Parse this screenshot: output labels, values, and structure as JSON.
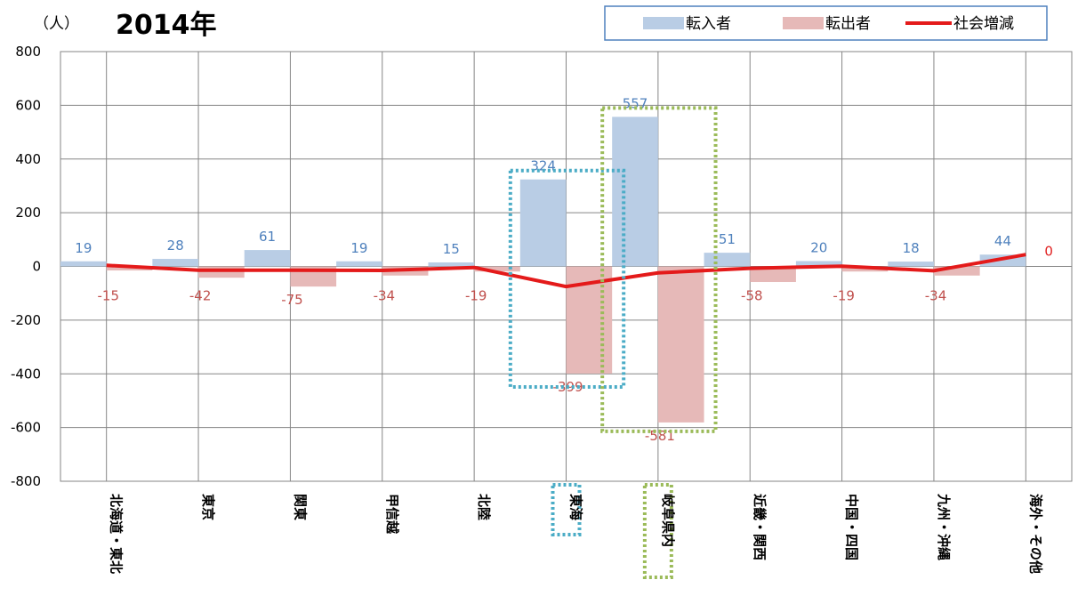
{
  "chart_data": {
    "type": "bar",
    "title": "2014年",
    "unit_label": "（人）",
    "ylim": [
      -800,
      800
    ],
    "yticks": [
      800,
      600,
      400,
      200,
      0,
      -200,
      -400,
      -600,
      -800
    ],
    "grid": true,
    "legend_position": "top-right",
    "categories": [
      "北海道・東北",
      "東京",
      "関東",
      "甲信越",
      "北陸",
      "東海",
      "岐阜県内",
      "近畿・関西",
      "中国・四国",
      "九州・沖縄",
      "海外・その他"
    ],
    "series": [
      {
        "name": "転入者",
        "kind": "bar",
        "color": "#b9cde5",
        "label_color": "#4f81bd",
        "values": [
          19,
          28,
          61,
          19,
          15,
          324,
          557,
          51,
          20,
          18,
          44
        ]
      },
      {
        "name": "転出者",
        "kind": "bar",
        "color": "#e6b9b8",
        "label_color": "#c0504d",
        "values": [
          -15,
          -42,
          -75,
          -34,
          -19,
          -399,
          -581,
          -58,
          -19,
          -34,
          0
        ]
      },
      {
        "name": "社会増減",
        "kind": "line",
        "color": "#e41a1a",
        "values": [
          4,
          -14,
          -14,
          -15,
          -4,
          -75,
          -24,
          -7,
          1,
          -16,
          44
        ]
      }
    ],
    "highlights": [
      {
        "category": "東海",
        "color": "#4bacc6"
      },
      {
        "category": "岐阜県内",
        "color": "#9bbb59"
      }
    ]
  }
}
